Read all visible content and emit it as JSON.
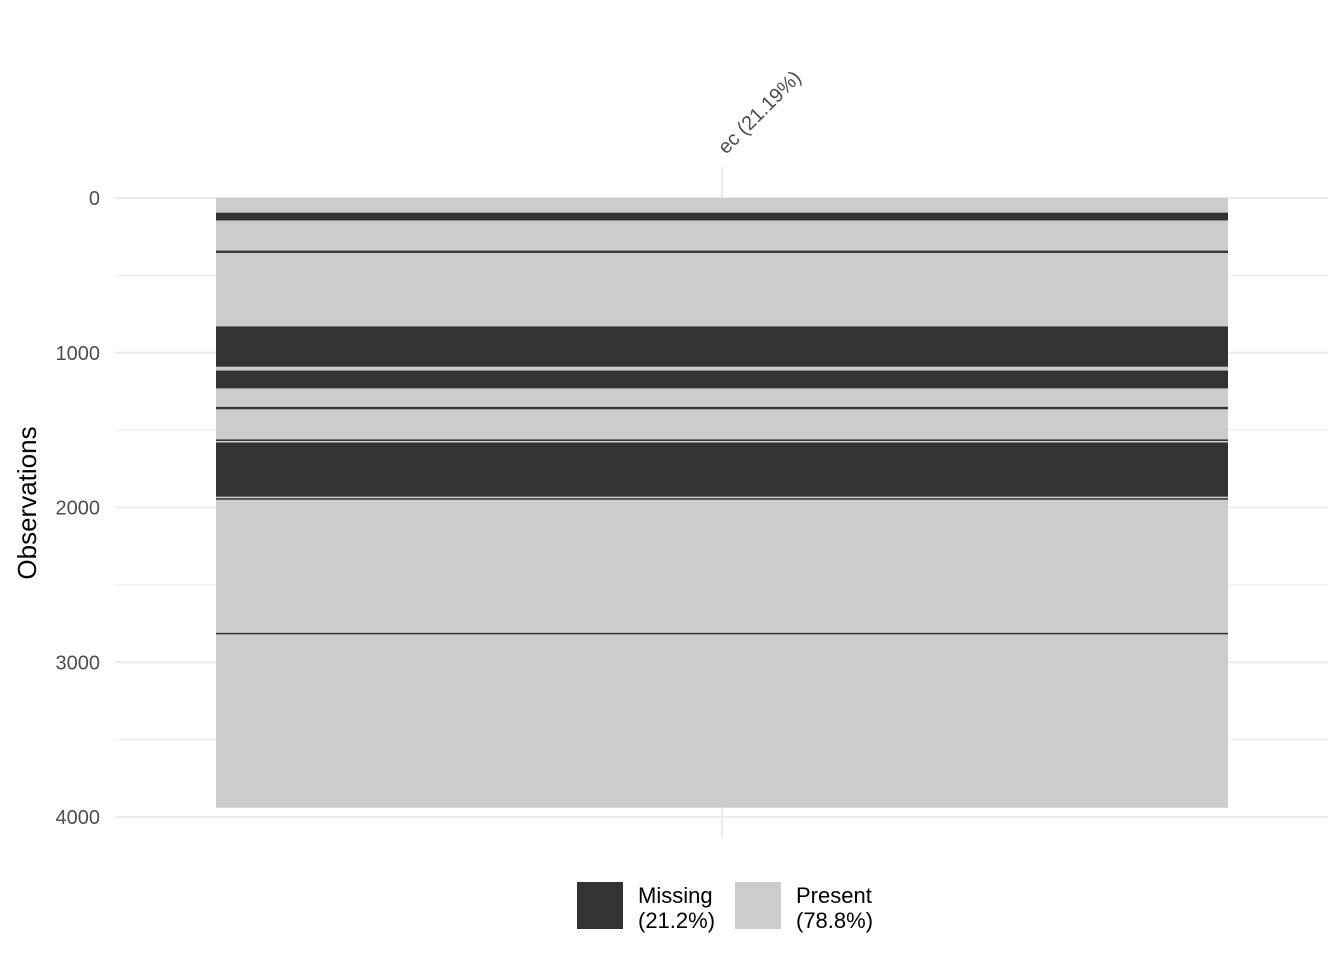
{
  "chart_data": {
    "type": "heatmap",
    "title": "",
    "xlabel": "",
    "ylabel": "Observations",
    "variables": [
      {
        "name": "ec",
        "label": "ec (21.19%)"
      }
    ],
    "n_observations": 3940,
    "ylim": [
      0,
      4000
    ],
    "y_ticks": [
      0,
      1000,
      2000,
      3000,
      4000
    ],
    "grid": true,
    "y_reversed": true,
    "missing_segments": [
      {
        "start": 95,
        "end": 145
      },
      {
        "start": 340,
        "end": 355
      },
      {
        "start": 830,
        "end": 1090
      },
      {
        "start": 1115,
        "end": 1230
      },
      {
        "start": 1350,
        "end": 1365
      },
      {
        "start": 1560,
        "end": 1570
      },
      {
        "start": 1580,
        "end": 1930
      },
      {
        "start": 1940,
        "end": 1945
      },
      {
        "start": 2810,
        "end": 2815
      }
    ],
    "legend": {
      "position": "bottom",
      "entries": [
        {
          "key": "missing",
          "label_1": "Missing",
          "label_2": "(21.2%)",
          "color": "#333333"
        },
        {
          "key": "present",
          "label_1": "Present",
          "label_2": "(78.8%)",
          "color": "#cccccc"
        }
      ]
    },
    "colors": {
      "missing": "#333333",
      "present": "#cccccc",
      "grid": "#ebebeb"
    }
  }
}
